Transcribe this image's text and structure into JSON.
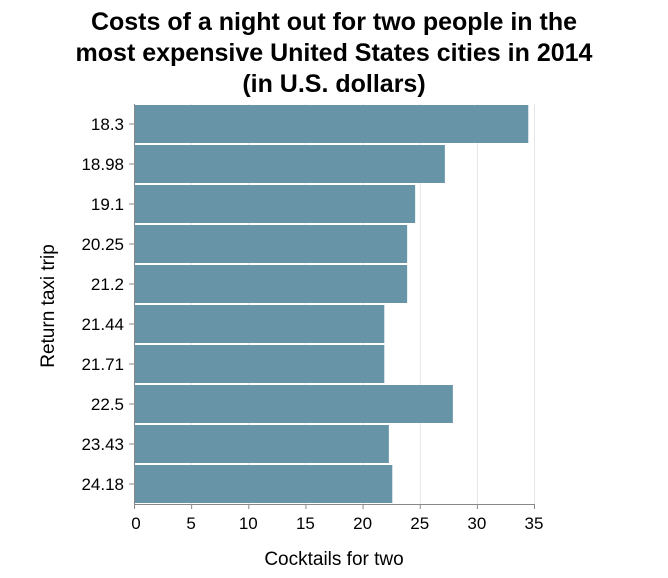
{
  "chart_data": {
    "type": "bar",
    "orientation": "horizontal",
    "title": "Costs of a night out for two people in the most expensive United States cities in 2014 (in U.S. dollars)",
    "title_lines": [
      "Costs of a night out for two people in the",
      "most expensive United States cities in 2014",
      "(in U.S. dollars)"
    ],
    "xlabel": "Cocktails for two",
    "ylabel": "Return taxi trip",
    "categories": [
      "18.3",
      "18.98",
      "19.1",
      "20.25",
      "21.2",
      "21.44",
      "21.71",
      "22.5",
      "23.43",
      "24.18"
    ],
    "values": [
      34.5,
      27.2,
      24.6,
      23.9,
      23.9,
      21.9,
      21.9,
      27.9,
      22.3,
      22.6
    ],
    "xlim": [
      0,
      35
    ],
    "xticks": [
      0,
      5,
      10,
      15,
      20,
      25,
      30,
      35
    ],
    "grid": true,
    "bar_color": "#6794a7"
  }
}
